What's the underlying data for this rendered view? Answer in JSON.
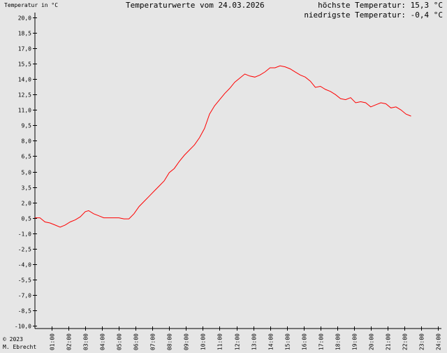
{
  "header": {
    "y_axis_label": "Temperatur in °C",
    "title": "Temperaturwerte vom 24.03.2026",
    "max_label": "höchste Temperatur:",
    "max_value": "15,3 °C",
    "min_label": "niedrigste Temperatur:",
    "min_value": "-0,4 °C"
  },
  "footer": {
    "copyright": "© 2023",
    "author": "M. Ebrecht"
  },
  "chart_data": {
    "type": "line",
    "title": "Temperaturwerte vom 24.03.2026",
    "ylabel": "Temperatur in °C",
    "xlabel": "",
    "ylim": [
      -10,
      20
    ],
    "xlim": [
      0,
      24
    ],
    "grid": false,
    "line_color": "#ff0000",
    "y_ticks": [
      -10,
      -8.5,
      -7,
      -5.5,
      -4,
      -2.5,
      -1,
      0.5,
      2,
      3.5,
      5,
      6.5,
      8,
      9.5,
      11,
      12.5,
      14,
      15.5,
      17,
      18.5,
      20
    ],
    "y_tick_labels": [
      "-10,0",
      "-8,5",
      "-7,0",
      "-5,5",
      "-4,0",
      "-2,5",
      "-1,0",
      "0,5",
      "2,0",
      "3,5",
      "5,0",
      "6,5",
      "8,0",
      "9,5",
      "11,0",
      "12,5",
      "14,0",
      "15,5",
      "17,0",
      "18,5",
      "20,0"
    ],
    "x_ticks": [
      1,
      2,
      3,
      4,
      5,
      6,
      7,
      8,
      9,
      10,
      11,
      12,
      13,
      14,
      15,
      16,
      17,
      18,
      19,
      20,
      21,
      22,
      23,
      24
    ],
    "x_tick_labels": [
      "01:00",
      "02:00",
      "03:00",
      "04:00",
      "05:00",
      "06:00",
      "07:00",
      "08:00",
      "09:00",
      "10:00",
      "11:00",
      "12:00",
      "13:00",
      "14:00",
      "15:00",
      "16:00",
      "17:00",
      "18:00",
      "19:00",
      "20:00",
      "21:00",
      "22:00",
      "23:00",
      "24:00"
    ],
    "series": [
      {
        "x": [
          0,
          0.3,
          0.6,
          0.9,
          1.2,
          1.5,
          1.8,
          2.1,
          2.4,
          2.7,
          3.0,
          3.2,
          3.5,
          3.8,
          4.1,
          4.4,
          4.7,
          5.0,
          5.3,
          5.6,
          5.9,
          6.2,
          6.5,
          6.8,
          7.1,
          7.4,
          7.7,
          8.0,
          8.3,
          8.6,
          8.9,
          9.2,
          9.5,
          9.8,
          10.1,
          10.4,
          10.7,
          11.0,
          11.3,
          11.6,
          11.9,
          12.2,
          12.5,
          12.8,
          13.1,
          13.4,
          13.7,
          14.0,
          14.3,
          14.6,
          14.9,
          15.2,
          15.5,
          15.8,
          16.1,
          16.4,
          16.7,
          17.0,
          17.3,
          17.6,
          17.9,
          18.2,
          18.5,
          18.8,
          19.1,
          19.4,
          19.7,
          20.0,
          20.3,
          20.6,
          20.9,
          21.2,
          21.5,
          21.8,
          22.1,
          22.4
        ],
        "y": [
          0.5,
          0.5,
          0.1,
          0.0,
          -0.2,
          -0.4,
          -0.2,
          0.1,
          0.3,
          0.6,
          1.1,
          1.2,
          0.9,
          0.7,
          0.5,
          0.5,
          0.5,
          0.5,
          0.4,
          0.4,
          0.9,
          1.6,
          2.1,
          2.6,
          3.1,
          3.6,
          4.1,
          4.9,
          5.3,
          6.0,
          6.6,
          7.1,
          7.6,
          8.3,
          9.2,
          10.6,
          11.4,
          12.0,
          12.6,
          13.1,
          13.7,
          14.1,
          14.5,
          14.3,
          14.2,
          14.4,
          14.7,
          15.1,
          15.1,
          15.3,
          15.2,
          15.0,
          14.7,
          14.4,
          14.2,
          13.8,
          13.2,
          13.3,
          13.0,
          12.8,
          12.5,
          12.1,
          12.0,
          12.2,
          11.7,
          11.8,
          11.7,
          11.3,
          11.5,
          11.7,
          11.6,
          11.2,
          11.3,
          11.0,
          10.6,
          10.4
        ]
      }
    ]
  }
}
